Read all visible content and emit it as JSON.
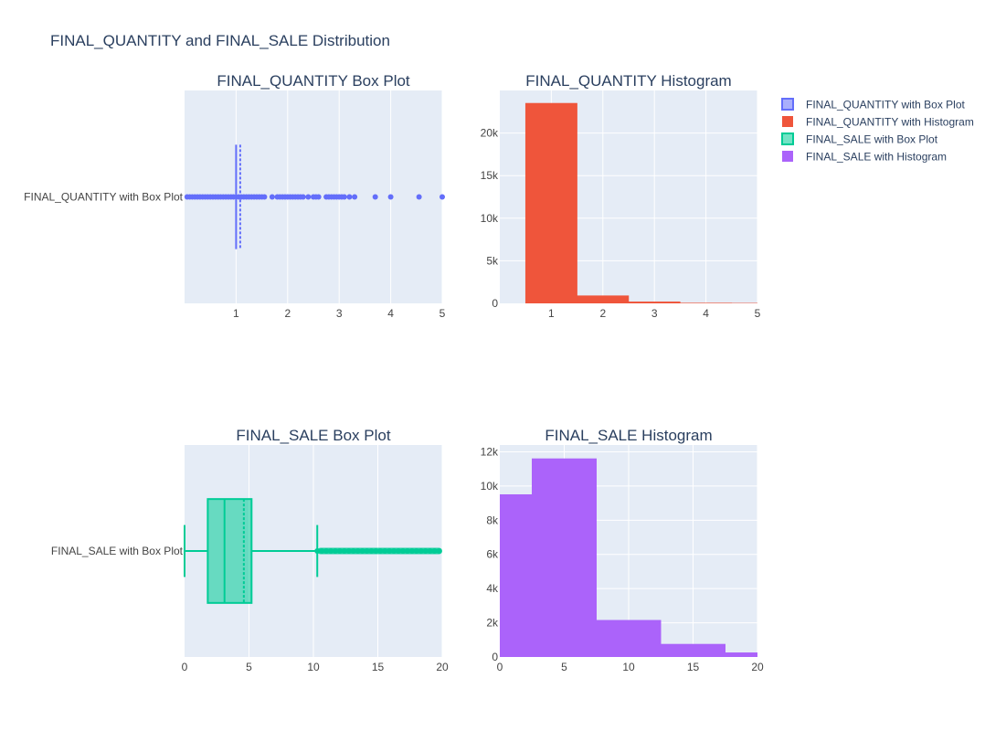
{
  "figure": {
    "title": "FINAL_QUANTITY and FINAL_SALE Distribution"
  },
  "legend": {
    "items": [
      {
        "label": "FINAL_QUANTITY with Box Plot",
        "color": "#636efa",
        "kind": "box"
      },
      {
        "label": "FINAL_QUANTITY with Histogram",
        "color": "#EF553B",
        "kind": "bar"
      },
      {
        "label": "FINAL_SALE with Box Plot",
        "color": "#00cc96",
        "kind": "box"
      },
      {
        "label": "FINAL_SALE with Histogram",
        "color": "#ab63fa",
        "kind": "bar"
      }
    ]
  },
  "chart_data": [
    {
      "type": "box",
      "title": "FINAL_QUANTITY Box Plot",
      "orientation": "h",
      "category": "FINAL_QUANTITY with Box Plot",
      "color": "#636efa",
      "xlim": [
        0,
        5
      ],
      "xticks": [
        1,
        2,
        3,
        4,
        5
      ],
      "q1": 1,
      "median": 1,
      "q3": 1,
      "mean": 1.08,
      "whisker_low": 1,
      "whisker_high": 1,
      "outliers": [
        0.05,
        0.1,
        0.15,
        0.2,
        0.25,
        0.3,
        0.35,
        0.4,
        0.45,
        0.5,
        0.55,
        0.6,
        0.65,
        0.7,
        0.75,
        0.8,
        0.85,
        0.9,
        0.95,
        1.05,
        1.1,
        1.15,
        1.2,
        1.25,
        1.3,
        1.35,
        1.4,
        1.45,
        1.5,
        1.55,
        1.7,
        1.8,
        1.85,
        1.9,
        1.95,
        2.0,
        2.05,
        2.1,
        2.15,
        2.2,
        2.25,
        2.3,
        2.4,
        2.5,
        2.55,
        2.6,
        2.75,
        2.8,
        2.85,
        2.9,
        2.95,
        3.0,
        3.05,
        3.1,
        3.2,
        3.3,
        3.7,
        4.0,
        4.55,
        5.0
      ]
    },
    {
      "type": "bar",
      "title": "FINAL_QUANTITY Histogram",
      "color": "#EF553B",
      "xlim": [
        0,
        5
      ],
      "xticks": [
        1,
        2,
        3,
        4,
        5
      ],
      "ylim": [
        0,
        25000
      ],
      "yticks": [
        0,
        5000,
        10000,
        15000,
        20000
      ],
      "ytick_labels": [
        "0",
        "5k",
        "10k",
        "15k",
        "20k"
      ],
      "bins": [
        {
          "x0": 0.5,
          "x1": 1.5,
          "count": 23500
        },
        {
          "x0": 1.5,
          "x1": 2.5,
          "count": 900
        },
        {
          "x0": 2.5,
          "x1": 3.5,
          "count": 180
        },
        {
          "x0": 3.5,
          "x1": 4.5,
          "count": 40
        },
        {
          "x0": 4.5,
          "x1": 5.5,
          "count": 20
        }
      ]
    },
    {
      "type": "box",
      "title": "FINAL_SALE Box Plot",
      "orientation": "h",
      "category": "FINAL_SALE with Box Plot",
      "color": "#00cc96",
      "xlim": [
        0,
        20
      ],
      "xticks": [
        0,
        5,
        10,
        15,
        20
      ],
      "q1": 1.8,
      "median": 3.1,
      "q3": 5.2,
      "mean": 4.6,
      "whisker_low": 0,
      "whisker_high": 10.3,
      "outlier_band": [
        10.3,
        20
      ]
    },
    {
      "type": "bar",
      "title": "FINAL_SALE Histogram",
      "color": "#ab63fa",
      "xlim": [
        0,
        20
      ],
      "xticks": [
        0,
        5,
        10,
        15,
        20
      ],
      "ylim": [
        0,
        12400
      ],
      "yticks": [
        0,
        2000,
        4000,
        6000,
        8000,
        10000,
        12000
      ],
      "ytick_labels": [
        "0",
        "2k",
        "4k",
        "6k",
        "8k",
        "10k",
        "12k"
      ],
      "bins": [
        {
          "x0": -2.5,
          "x1": 2.5,
          "count": 9500
        },
        {
          "x0": 2.5,
          "x1": 7.5,
          "count": 11600
        },
        {
          "x0": 7.5,
          "x1": 12.5,
          "count": 2150
        },
        {
          "x0": 12.5,
          "x1": 17.5,
          "count": 750
        },
        {
          "x0": 17.5,
          "x1": 22.5,
          "count": 250
        }
      ]
    }
  ]
}
